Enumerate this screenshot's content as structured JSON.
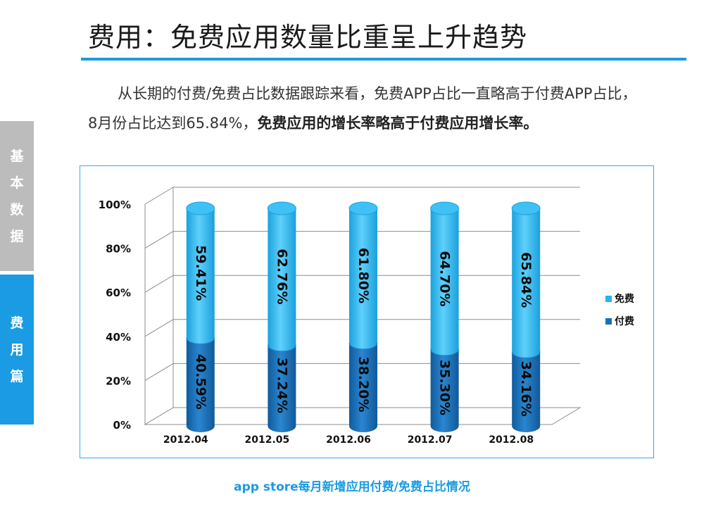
{
  "header": {
    "title": "费用：免费应用数量比重呈上升趋势"
  },
  "sidebar": {
    "tabs": [
      {
        "label": "基本数据",
        "active": false
      },
      {
        "label": "费用篇",
        "active": true
      }
    ]
  },
  "intro": {
    "normal": "从长期的付费/免费占比数据跟踪来看，免费APP占比一直略高于付费APP占比，8月份占比达到65.84%，",
    "bold": "免费应用的增长率略高于付费应用增长率。"
  },
  "chart_data": {
    "type": "bar",
    "stacked": true,
    "style": "3d-cylinder",
    "categories": [
      "2012.04",
      "2012.05",
      "2012.06",
      "2012.07",
      "2012.08"
    ],
    "series": [
      {
        "name": "付费",
        "values": [
          40.59,
          37.24,
          38.2,
          35.3,
          34.16
        ],
        "labels": [
          "40.59%",
          "37.24%",
          "38.20%",
          "35.30%",
          "34.16%"
        ],
        "color": "#1a6fb8"
      },
      {
        "name": "免费",
        "values": [
          59.41,
          62.76,
          61.8,
          64.7,
          65.84
        ],
        "labels": [
          "59.41%",
          "62.76%",
          "61.80%",
          "64.70%",
          "65.84%"
        ],
        "color": "#29b3ec"
      }
    ],
    "yticks": [
      "0%",
      "20%",
      "40%",
      "60%",
      "80%",
      "100%"
    ],
    "ylim": [
      0,
      100
    ],
    "legend": {
      "position": "right",
      "order": [
        "免费",
        "付费"
      ]
    },
    "grid": true
  },
  "caption": "app store每月新增应用付费/免费占比情况"
}
